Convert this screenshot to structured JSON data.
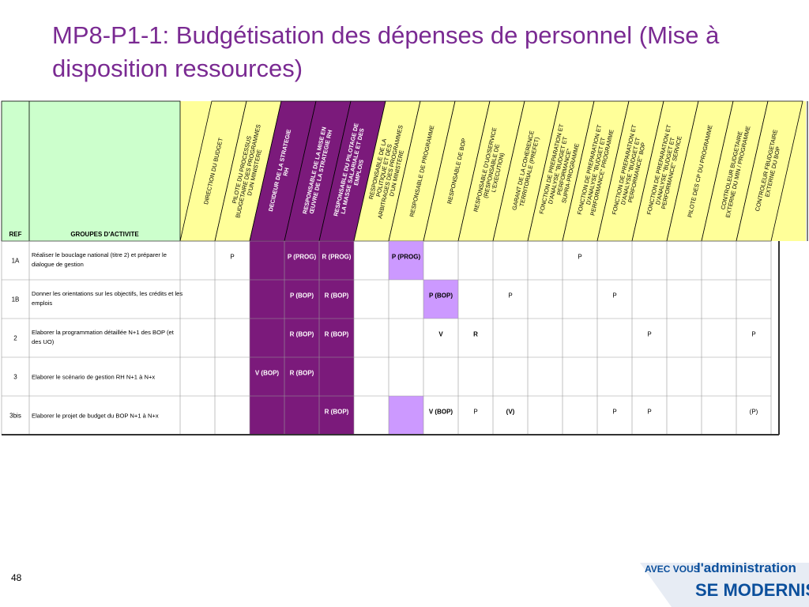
{
  "title": "MP8-P1-1: Budgétisation des dépenses de personnel (Mise à disposition ressources)",
  "slide_number": "48",
  "logo": {
    "line1a": "AVEC VOUS",
    "line1b": "l'administration",
    "line2": "SE MODERNISE"
  },
  "table": {
    "ref_header": "REF",
    "groups_header": "GROUPES D'ACTIVITE",
    "columns": [
      "DIRECTION DU BUDGET",
      "PILOTE DU PROCESSUS BUDGETAIRE DES PROGRAMMES D'UN MINISTERE",
      "DECIDEUR DE LA STRATEGIE RH",
      "RESPONSABLE DE LA MISE EN ŒUVRE DE LA STRATEGIE RH",
      "RESPONSABLE DU PILOTAGE DE LA MASSE SALARIALE ET DES EMPLOIS",
      "RESPONSABLE DE LA POLITIQUE ET DES ARBITRAGES DES PROGRAMMES D'UN MINISTERE",
      "RESPONSABLE DE PROGRAMME",
      "RESPONSABLE DE BOP",
      "RESPONSABLE D'UO/SERVICE (RESPONSABLE DE L'EXECUTION)",
      "GARANT DE LA COHERENCE TERRITORIALE (PREFET)",
      "FONCTION DE PREPARATION ET D'ANALYSE \"BUDGET ET PERFORMANCE\" SUPRA-PROGRAMME",
      "FONCTION DE PREPARATION ET D'ANALYSE \"BUDGET ET PERFORMANCE\" PROGRAMME",
      "FONCTION DE PREPARATION ET D'ANALYSE \"BUDGET ET PERFORMANCE\" BOP",
      "FONCTION DE PREPARATION ET D'ANALYSE \"BUDGET ET PERFORMANCE\" SERVICE",
      "PILOTE DES CP DU PROGRAMME",
      "CONTROLEUR BUDGETAIRE EXTERNE DU MIN / PROGRAMME",
      "CONTROLEUR FBUDGETAIRE EXTERNE DU BOP"
    ],
    "rows": [
      {
        "ref": "1A",
        "activity": [
          "Réaliser le bouclage national (titre 2) et préparer le",
          "dialogue de gestion"
        ],
        "cells": [
          "",
          "P",
          "",
          "P (PROG)",
          "R (PROG)",
          "",
          "P (PROG)",
          "",
          "",
          "",
          "",
          "P",
          "",
          "",
          "",
          "",
          ""
        ]
      },
      {
        "ref": "1B",
        "activity": [
          "Donner les orientations sur les objectifs, les crédits et les",
          "emplois"
        ],
        "cells": [
          "",
          "",
          "",
          "P (BOP)",
          "R (BOP)",
          "",
          "",
          "P (BOP)",
          "",
          "P",
          "",
          "",
          "P",
          "",
          "",
          "",
          ""
        ]
      },
      {
        "ref": "2",
        "activity": [
          "Elaborer la programmation détaillée N+1 des BOP (et",
          "des UO)"
        ],
        "cells": [
          "",
          "",
          "",
          "R (BOP)",
          "R (BOP)",
          "",
          "",
          "V",
          "R",
          "",
          "",
          "",
          "",
          "P",
          "",
          "",
          "P"
        ]
      },
      {
        "ref": "3",
        "activity": [
          "Elaborer le scénario de gestion RH N+1 à N+x"
        ],
        "cells": [
          "",
          "",
          "V (BOP)",
          "R (BOP)",
          "",
          "",
          "",
          "",
          "",
          "",
          "",
          "",
          "",
          "",
          "",
          "",
          ""
        ]
      },
      {
        "ref": "3bis",
        "activity": [
          "Elaborer le projet de budget du BOP N+1 à N+x"
        ],
        "cells": [
          "",
          "",
          "",
          "",
          "R (BOP)",
          "",
          "",
          "V (BOP)",
          "P",
          "(V)",
          "",
          "",
          "P",
          "P",
          "",
          "",
          "(P)"
        ]
      }
    ]
  },
  "colors": {
    "title": "#7a2a92",
    "header_yellow": "#ffff99",
    "dark_purple": "#7b1a7b",
    "light_purple": "#cc99ff",
    "ref_green": "#ccffcc"
  }
}
